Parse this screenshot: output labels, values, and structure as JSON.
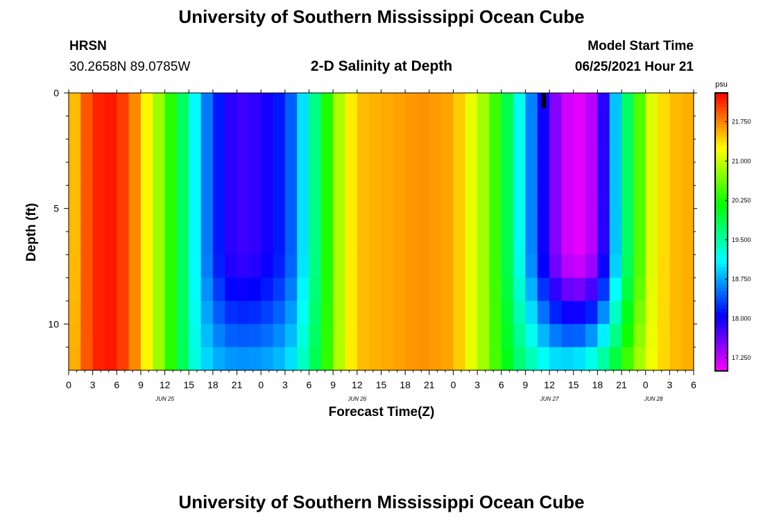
{
  "header": {
    "title": "University of Southern Mississippi Ocean Cube",
    "station": "HRSN",
    "coordinates": "30.2658N  89.0785W",
    "plot_title": "2-D Salinity at Depth",
    "model_start_label": "Model Start Time",
    "model_start_value": "06/25/2021 Hour 21"
  },
  "footer": {
    "title": "University of Southern Mississippi Ocean Cube"
  },
  "chart_data": {
    "type": "heatmap",
    "title": "2-D Salinity at Depth",
    "xlabel": "Forecast Time(Z)",
    "ylabel": "Depth (ft)",
    "x_unit": "hours since Jun 25 00Z",
    "xlim": [
      0,
      78
    ],
    "ylim": [
      12,
      0
    ],
    "x_tick_values": [
      0,
      3,
      6,
      9,
      12,
      15,
      18,
      21,
      24,
      27,
      30,
      33,
      36,
      39,
      42,
      45,
      48,
      51,
      54,
      57,
      60,
      63,
      66,
      69,
      72,
      75,
      78
    ],
    "x_tick_labels": [
      "0",
      "3",
      "6",
      "9",
      "12",
      "15",
      "18",
      "21",
      "0",
      "3",
      "6",
      "9",
      "12",
      "15",
      "18",
      "21",
      "0",
      "3",
      "6",
      "9",
      "12",
      "15",
      "18",
      "21",
      "0",
      "3",
      "6"
    ],
    "date_labels": [
      {
        "text": "JUN 25",
        "x": 12
      },
      {
        "text": "JUN 26",
        "x": 36
      },
      {
        "text": "JUN 27",
        "x": 60
      },
      {
        "text": "JUN 28",
        "x": 73
      }
    ],
    "y_tick_values": [
      0,
      5,
      10
    ],
    "y_tick_labels": [
      "0",
      "5",
      "10"
    ],
    "depth_rows_ft": [
      0,
      1,
      2,
      3,
      4,
      5,
      6,
      7,
      8,
      9,
      10,
      11,
      12
    ],
    "colorbar": {
      "unit": "psu",
      "min": 17.0,
      "max": 22.3,
      "tick_values": [
        17.25,
        18.0,
        18.75,
        19.5,
        20.25,
        21.0,
        21.75
      ],
      "tick_labels": [
        "17.250",
        "18.000",
        "18.750",
        "19.500",
        "20.250",
        "21.000",
        "21.750"
      ]
    },
    "salinity_surface_psu_by_hour": [
      [
        0,
        21.3
      ],
      [
        2,
        21.9
      ],
      [
        4,
        22.2
      ],
      [
        6,
        22.2
      ],
      [
        8,
        21.8
      ],
      [
        10,
        21.2
      ],
      [
        12,
        20.6
      ],
      [
        14,
        19.9
      ],
      [
        16,
        19.0
      ],
      [
        18,
        18.3
      ],
      [
        20,
        17.9
      ],
      [
        22,
        17.8
      ],
      [
        24,
        17.9
      ],
      [
        26,
        18.1
      ],
      [
        28,
        18.5
      ],
      [
        30,
        19.3
      ],
      [
        32,
        20.2
      ],
      [
        34,
        21.0
      ],
      [
        36,
        21.5
      ],
      [
        40,
        21.6
      ],
      [
        44,
        21.7
      ],
      [
        48,
        21.6
      ],
      [
        50,
        21.2
      ],
      [
        52,
        20.8
      ],
      [
        54,
        20.2
      ],
      [
        56,
        19.3
      ],
      [
        58,
        18.5
      ],
      [
        60,
        17.7
      ],
      [
        62,
        17.2
      ],
      [
        64,
        17.1
      ],
      [
        65,
        17.2
      ],
      [
        67,
        18.0
      ],
      [
        69,
        19.4
      ],
      [
        71,
        20.4
      ],
      [
        73,
        21.2
      ],
      [
        75,
        21.5
      ],
      [
        78,
        21.6
      ]
    ],
    "salinity_bottom_psu_by_hour": [
      [
        0,
        21.4
      ],
      [
        2,
        21.9
      ],
      [
        4,
        22.2
      ],
      [
        6,
        22.2
      ],
      [
        8,
        21.8
      ],
      [
        10,
        21.2
      ],
      [
        12,
        20.6
      ],
      [
        14,
        19.9
      ],
      [
        16,
        19.2
      ],
      [
        18,
        18.9
      ],
      [
        20,
        18.8
      ],
      [
        22,
        18.8
      ],
      [
        24,
        18.8
      ],
      [
        26,
        18.9
      ],
      [
        28,
        19.1
      ],
      [
        30,
        19.6
      ],
      [
        32,
        20.3
      ],
      [
        34,
        21.0
      ],
      [
        36,
        21.5
      ],
      [
        40,
        21.6
      ],
      [
        44,
        21.7
      ],
      [
        48,
        21.6
      ],
      [
        50,
        21.2
      ],
      [
        52,
        20.8
      ],
      [
        54,
        20.3
      ],
      [
        56,
        19.8
      ],
      [
        58,
        19.5
      ],
      [
        60,
        19.2
      ],
      [
        62,
        19.2
      ],
      [
        64,
        19.3
      ],
      [
        66,
        19.6
      ],
      [
        68,
        20.0
      ],
      [
        70,
        20.6
      ],
      [
        72,
        21.1
      ],
      [
        75,
        21.5
      ],
      [
        78,
        21.6
      ]
    ],
    "marker": {
      "x": 59.3,
      "depth_top": 0,
      "depth_bottom": 0.5
    }
  }
}
